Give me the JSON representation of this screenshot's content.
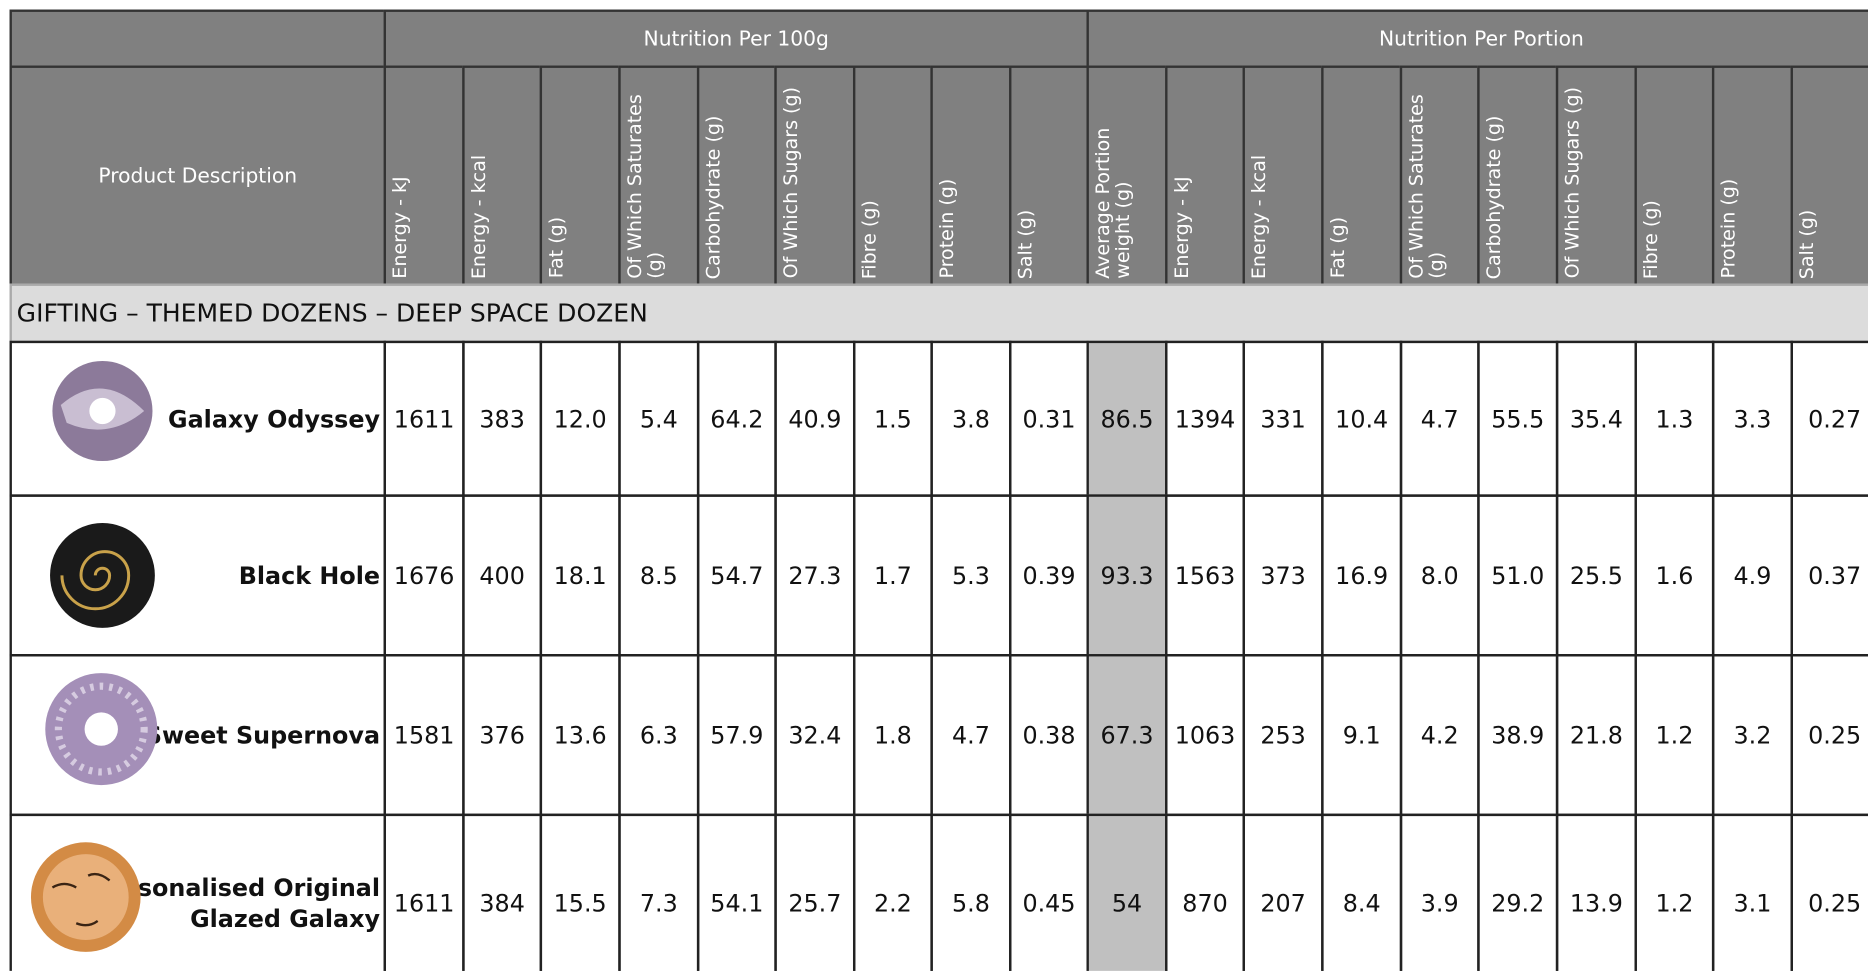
{
  "table": {
    "header_groups": [
      "Nutrition Per 100g",
      "Nutrition Per Portion"
    ],
    "product_header": "Product Description",
    "columns": [
      "Energy - kJ",
      "Energy - kcal",
      "Fat (g)",
      "Of Which Saturates (g)",
      "Carbohydrate (g)",
      "Of Which Sugars (g)",
      "Fibre (g)",
      "Protein (g)",
      "Salt (g)",
      "Average Portion weight (g)",
      "Energy - kJ",
      "Energy - kcal",
      "Fat (g)",
      "Of Which Saturates (g)",
      "Carbohydrate (g)",
      "Of Which Sugars (g)",
      "Fibre (g)",
      "Protein (g)",
      "Salt (g)"
    ],
    "section": "GIFTING – THEMED DOZENS – DEEP SPACE DOZEN",
    "rows": [
      {
        "name": "Galaxy Odyssey",
        "values": [
          "1611",
          "383",
          "12.0",
          "5.4",
          "64.2",
          "40.9",
          "1.5",
          "3.8",
          "0.31",
          "86.5",
          "1394",
          "331",
          "10.4",
          "4.7",
          "55.5",
          "35.4",
          "1.3",
          "3.3",
          "0.27"
        ]
      },
      {
        "name": "Black Hole",
        "values": [
          "1676",
          "400",
          "18.1",
          "8.5",
          "54.7",
          "27.3",
          "1.7",
          "5.3",
          "0.39",
          "93.3",
          "1563",
          "373",
          "16.9",
          "8.0",
          "51.0",
          "25.5",
          "1.6",
          "4.9",
          "0.37"
        ]
      },
      {
        "name": "Sweet Supernova",
        "values": [
          "1581",
          "376",
          "13.6",
          "6.3",
          "57.9",
          "32.4",
          "1.8",
          "4.7",
          "0.38",
          "67.3",
          "1063",
          "253",
          "9.1",
          "4.2",
          "38.9",
          "21.8",
          "1.2",
          "3.2",
          "0.25"
        ]
      },
      {
        "name": "Personalised Original Glazed Galaxy",
        "values": [
          "1611",
          "384",
          "15.5",
          "7.3",
          "54.1",
          "25.7",
          "2.2",
          "5.8",
          "0.45",
          "54",
          "870",
          "207",
          "8.4",
          "3.9",
          "29.2",
          "13.9",
          "1.2",
          "3.1",
          "0.25"
        ]
      }
    ]
  }
}
